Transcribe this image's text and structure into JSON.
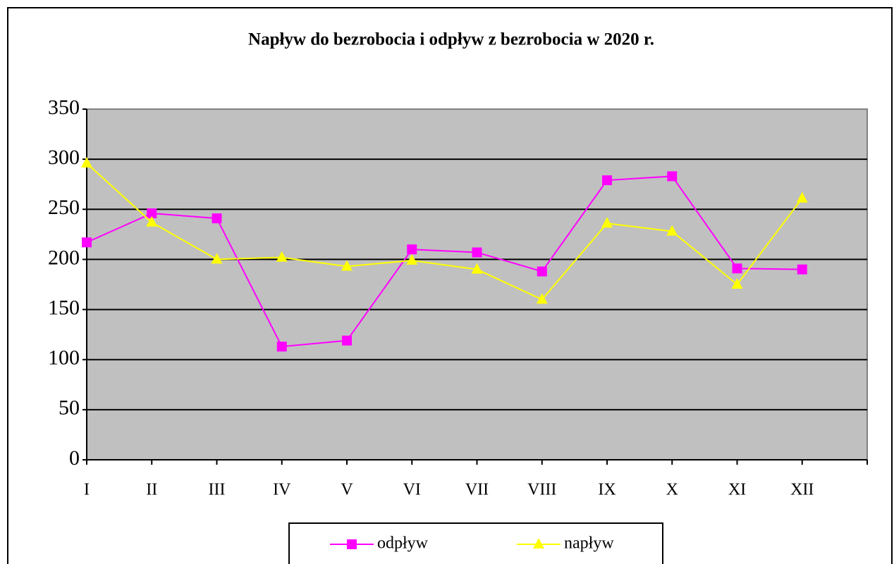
{
  "chart_data": {
    "type": "line",
    "title": "Napływ do bezrobocia i odpływ z bezrobocia w 2020 r.",
    "categories": [
      "I",
      "II",
      "III",
      "IV",
      "V",
      "VI",
      "VII",
      "VIII",
      "IX",
      "X",
      "XI",
      "XII"
    ],
    "series": [
      {
        "name": "odpływ",
        "color": "#ff00ff",
        "marker": "square",
        "values": [
          217,
          246,
          241,
          113,
          119,
          210,
          207,
          188,
          279,
          283,
          191,
          190
        ]
      },
      {
        "name": "napływ",
        "color": "#ffff00",
        "marker": "triangle",
        "values": [
          296,
          237,
          200,
          202,
          193,
          199,
          190,
          160,
          236,
          228,
          175,
          261
        ]
      }
    ],
    "ylim": [
      0,
      350
    ],
    "yticks": [
      0,
      50,
      100,
      150,
      200,
      250,
      300,
      350
    ],
    "grid": true,
    "plot_background": "#c0c0c0",
    "legend": "bottom"
  }
}
